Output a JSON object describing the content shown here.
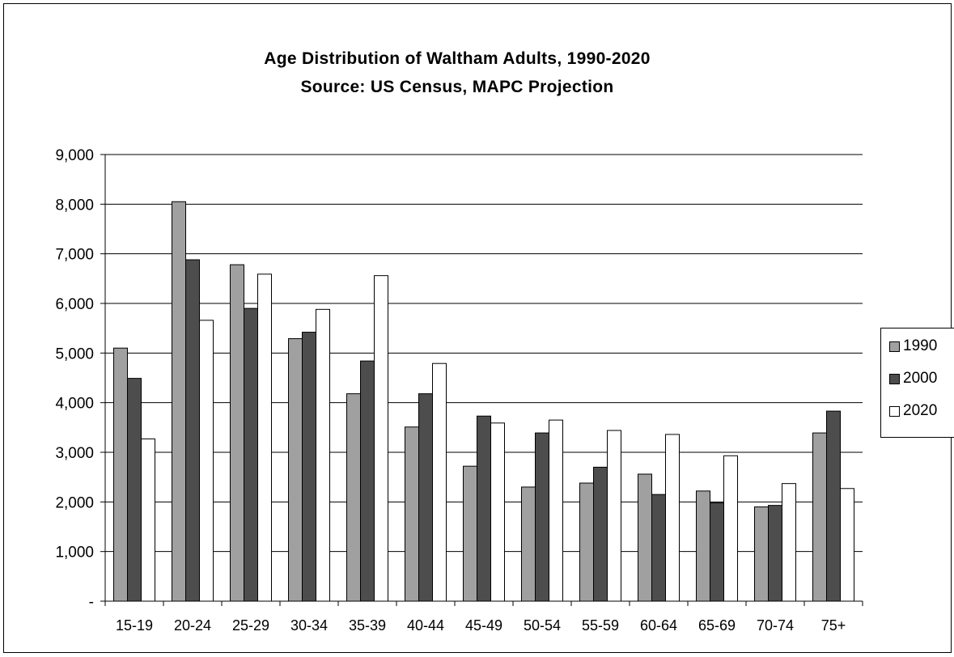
{
  "chart_data": {
    "type": "bar",
    "title": "Age Distribution of Waltham Adults, 1990-2020",
    "subtitle": "Source: US Census, MAPC Projection",
    "categories": [
      "15-19",
      "20-24",
      "25-29",
      "30-34",
      "35-39",
      "40-44",
      "45-49",
      "50-54",
      "55-59",
      "60-64",
      "65-69",
      "70-74",
      "75+"
    ],
    "series": [
      {
        "name": "1990",
        "color": "#a0a0a0",
        "values": [
          5100,
          8050,
          6780,
          5290,
          4180,
          3510,
          2720,
          2300,
          2380,
          2560,
          2220,
          1900,
          3390
        ]
      },
      {
        "name": "2000",
        "color": "#4d4d4d",
        "values": [
          4490,
          6880,
          5900,
          5420,
          4840,
          4180,
          3730,
          3390,
          2700,
          2150,
          1980,
          1930,
          3830
        ]
      },
      {
        "name": "2020",
        "color": "#ffffff",
        "values": [
          3270,
          5660,
          6590,
          5880,
          6560,
          4790,
          3590,
          3650,
          3440,
          3360,
          2930,
          2370,
          2270
        ]
      }
    ],
    "ylim": [
      0,
      9000
    ],
    "yticks": [
      0,
      1000,
      2000,
      3000,
      4000,
      5000,
      6000,
      7000,
      8000,
      9000
    ],
    "ytick_labels": [
      "-",
      "1,000",
      "2,000",
      "3,000",
      "4,000",
      "5,000",
      "6,000",
      "7,000",
      "8,000",
      "9,000"
    ],
    "grid": true,
    "legend_position": "right"
  }
}
